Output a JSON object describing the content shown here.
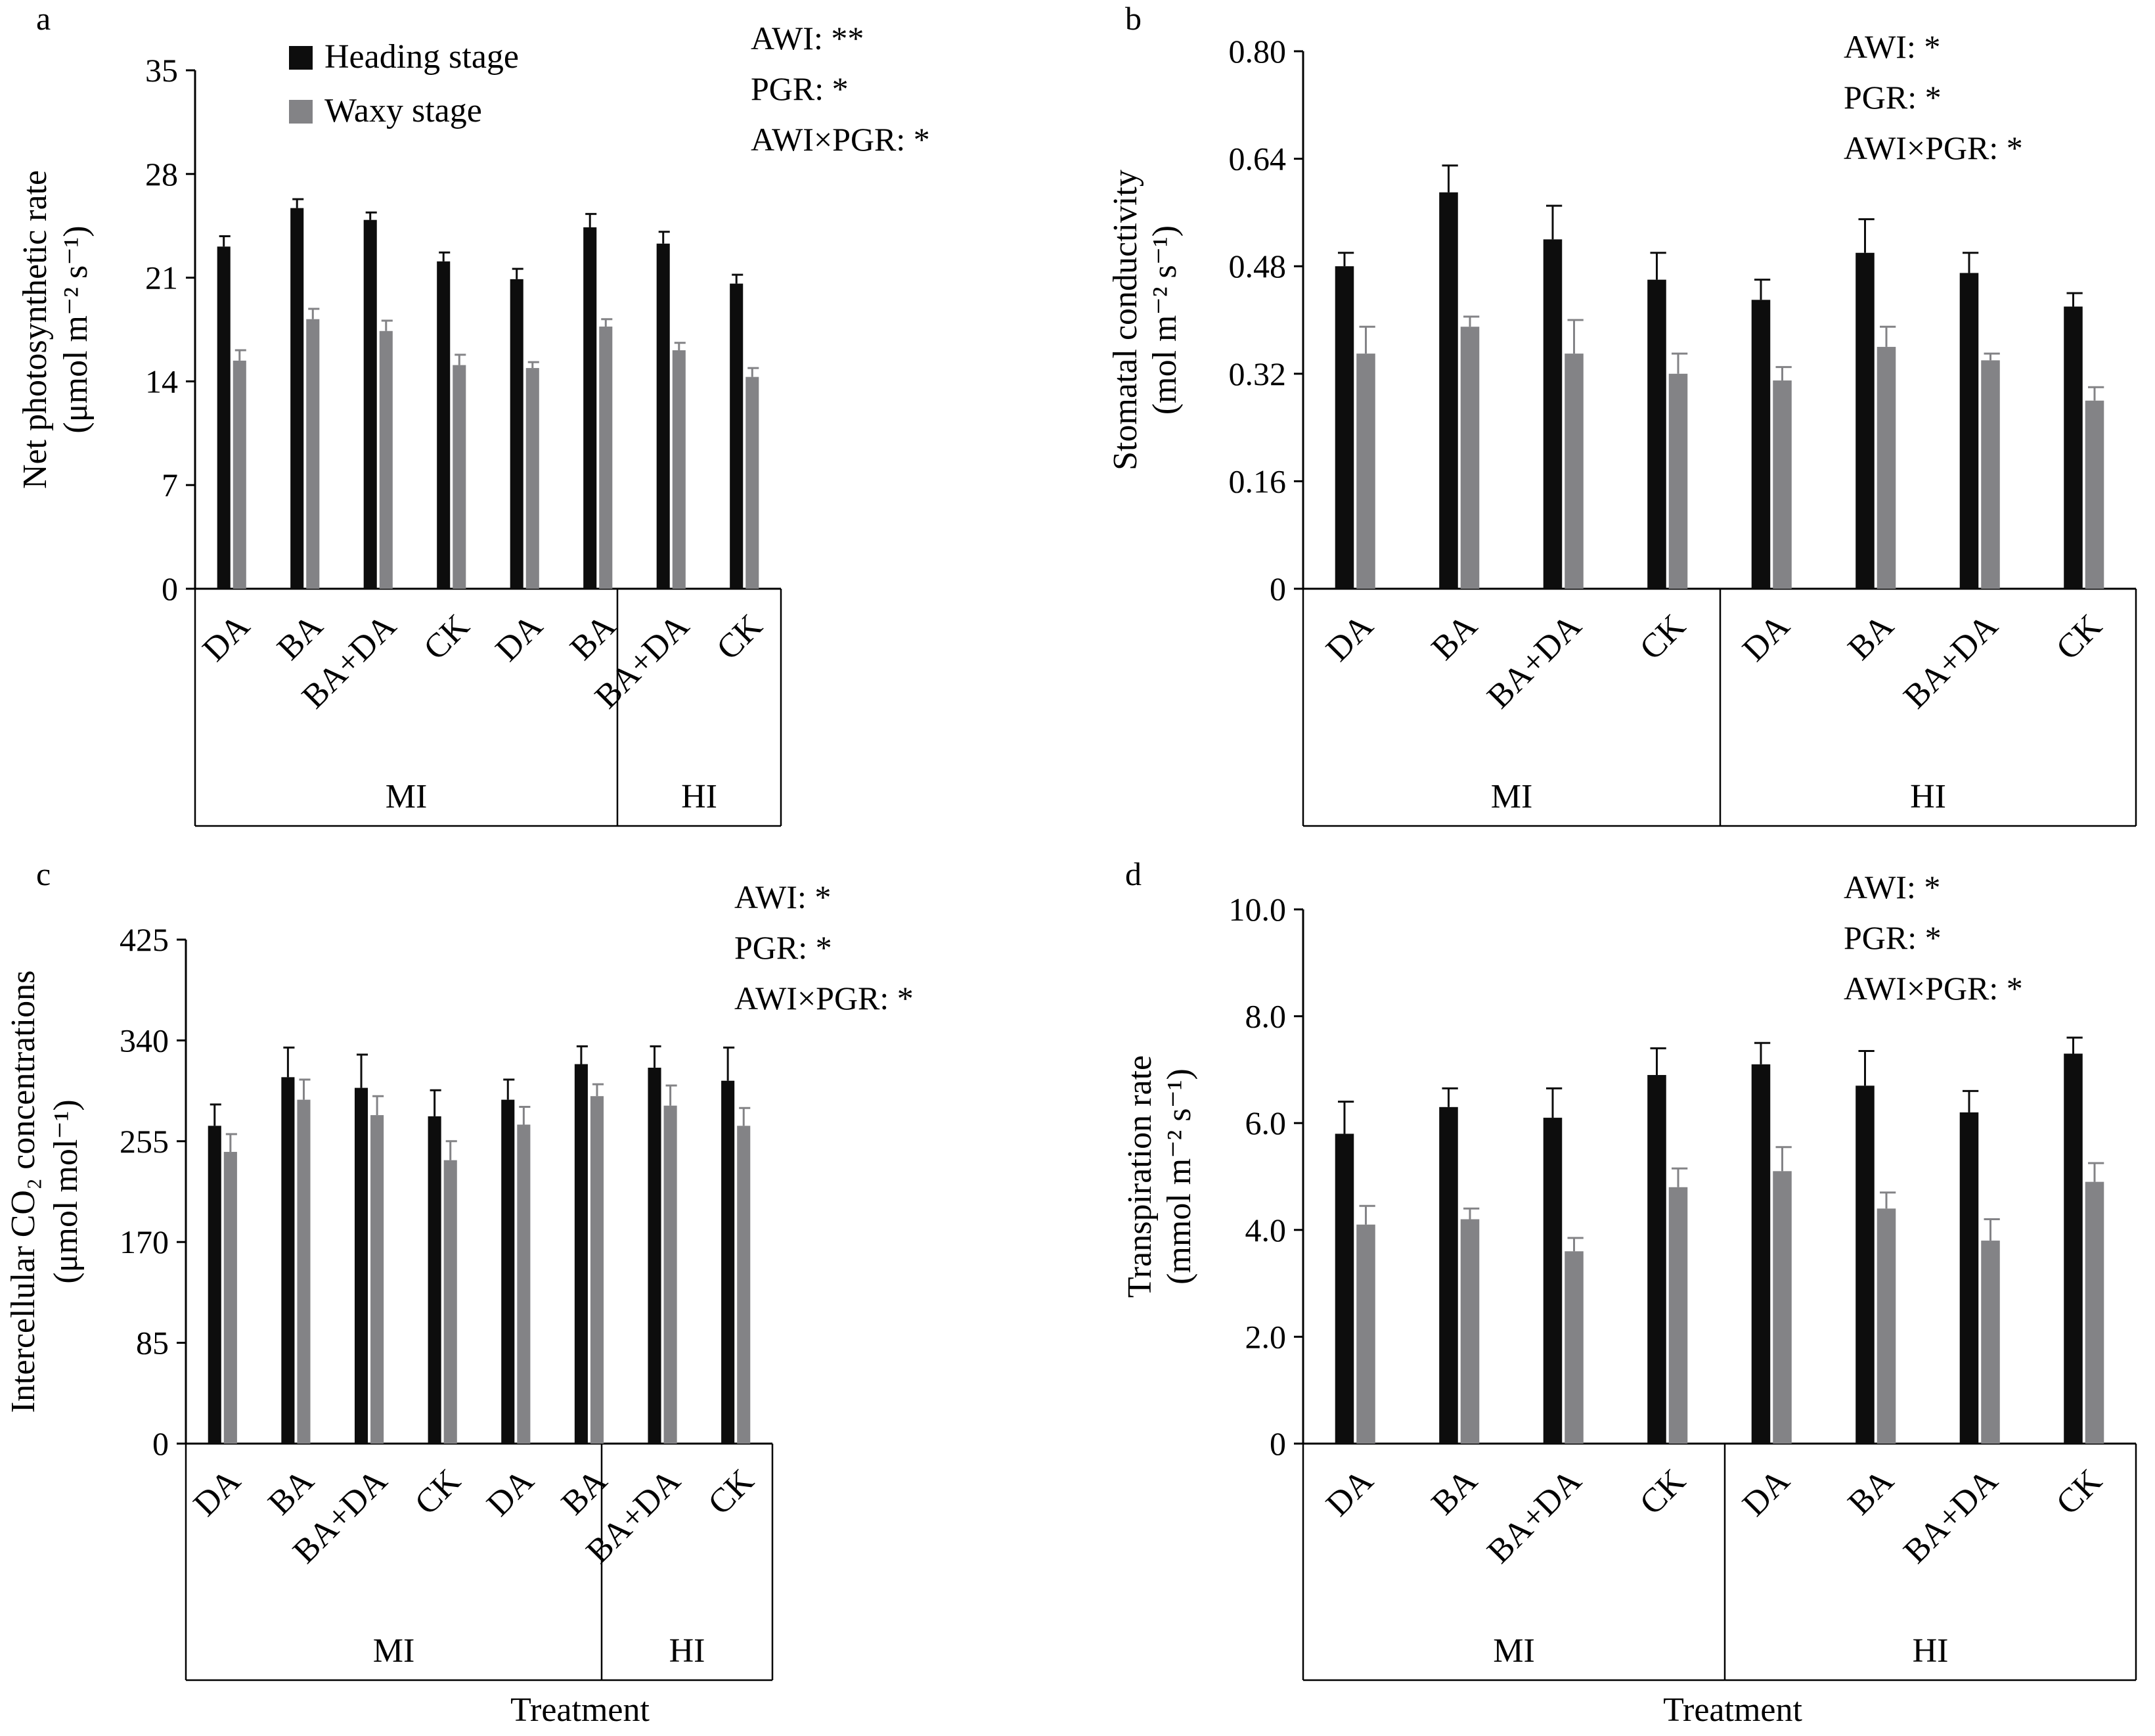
{
  "legend": {
    "series": [
      {
        "name": "Heading stage",
        "color": "#0d0d0d"
      },
      {
        "name": "Waxy stage",
        "color": "#838386"
      }
    ]
  },
  "x_title": "Treatment",
  "chart_data": [
    {
      "type": "bar",
      "panel": "a",
      "ylabel_line1": "Net photosynthetic rate",
      "ylabel_line2": "(μmol m⁻² s⁻¹)",
      "ylim": [
        0,
        35
      ],
      "yticks": [
        "0",
        "7",
        "14",
        "21",
        "28",
        "35"
      ],
      "categories": [
        "DA",
        "BA",
        "BA+DA",
        "CK",
        "DA",
        "BA",
        "BA+DA",
        "CK"
      ],
      "groups": [
        "MI",
        "HI"
      ],
      "series": [
        {
          "name": "Heading stage",
          "values": [
            23.1,
            25.7,
            24.9,
            22.1,
            20.9,
            24.4,
            23.3,
            20.6
          ],
          "errors": [
            0.7,
            0.6,
            0.5,
            0.6,
            0.7,
            0.9,
            0.8,
            0.6
          ]
        },
        {
          "name": "Waxy stage",
          "values": [
            15.4,
            18.2,
            17.4,
            15.1,
            14.9,
            17.7,
            16.1,
            14.3
          ],
          "errors": [
            0.7,
            0.7,
            0.7,
            0.7,
            0.4,
            0.5,
            0.5,
            0.6
          ]
        }
      ],
      "stats": [
        "AWI: **",
        "PGR: *",
        "AWI×PGR: *"
      ],
      "x_title": ""
    },
    {
      "type": "bar",
      "panel": "b",
      "ylabel_line1": "Stomatal conductivity",
      "ylabel_line2": "(mol m⁻² s⁻¹)",
      "ylim": [
        0,
        0.8
      ],
      "yticks": [
        "0",
        "0.16",
        "0.32",
        "0.48",
        "0.64",
        "0.80"
      ],
      "categories": [
        "DA",
        "BA",
        "BA+DA",
        "CK",
        "DA",
        "BA",
        "BA+DA",
        "CK"
      ],
      "groups": [
        "MI",
        "HI"
      ],
      "series": [
        {
          "name": "Heading stage",
          "values": [
            0.48,
            0.59,
            0.52,
            0.46,
            0.43,
            0.5,
            0.47,
            0.42
          ],
          "errors": [
            0.02,
            0.04,
            0.05,
            0.04,
            0.03,
            0.05,
            0.03,
            0.02
          ]
        },
        {
          "name": "Waxy stage",
          "values": [
            0.35,
            0.39,
            0.35,
            0.32,
            0.31,
            0.36,
            0.34,
            0.28
          ],
          "errors": [
            0.04,
            0.015,
            0.05,
            0.03,
            0.02,
            0.03,
            0.01,
            0.02
          ]
        }
      ],
      "stats": [
        "AWI: *",
        "PGR: *",
        "AWI×PGR: *"
      ],
      "x_title": ""
    },
    {
      "type": "bar",
      "panel": "c",
      "ylabel_line1": "Intercellular CO₂ concentrations",
      "ylabel_line2": "(μmol mol⁻¹)",
      "ylim": [
        0,
        425
      ],
      "yticks": [
        "0",
        "85",
        "170",
        "255",
        "340",
        "425"
      ],
      "categories": [
        "DA",
        "BA",
        "BA+DA",
        "CK",
        "DA",
        "BA",
        "BA+DA",
        "CK"
      ],
      "groups": [
        "MI",
        "HI"
      ],
      "series": [
        {
          "name": "Heading stage",
          "values": [
            268,
            309,
            300,
            276,
            290,
            320,
            317,
            306
          ],
          "errors": [
            18,
            25,
            28,
            22,
            17,
            15,
            18,
            28
          ]
        },
        {
          "name": "Waxy stage",
          "values": [
            246,
            290,
            277,
            239,
            269,
            293,
            285,
            268
          ],
          "errors": [
            15,
            17,
            16,
            16,
            15,
            10,
            17,
            15
          ]
        }
      ],
      "stats": [
        "AWI: *",
        "PGR: *",
        "AWI×PGR: *"
      ],
      "x_title": "Treatment"
    },
    {
      "type": "bar",
      "panel": "d",
      "ylabel_line1": "Transpiration rate",
      "ylabel_line2": "(mmol m⁻² s⁻¹)",
      "ylim": [
        0,
        10
      ],
      "yticks": [
        "0",
        "2.0",
        "4.0",
        "6.0",
        "8.0",
        "10.0"
      ],
      "categories": [
        "DA",
        "BA",
        "BA+DA",
        "CK",
        "DA",
        "BA",
        "BA+DA",
        "CK"
      ],
      "groups": [
        "MI",
        "HI"
      ],
      "series": [
        {
          "name": "Heading stage",
          "values": [
            5.8,
            6.3,
            6.1,
            6.9,
            7.1,
            6.7,
            6.2,
            7.3
          ],
          "errors": [
            0.6,
            0.35,
            0.55,
            0.5,
            0.4,
            0.65,
            0.4,
            0.3
          ]
        },
        {
          "name": "Waxy stage",
          "values": [
            4.1,
            4.2,
            3.6,
            4.8,
            5.1,
            4.4,
            3.8,
            4.9
          ],
          "errors": [
            0.35,
            0.2,
            0.25,
            0.35,
            0.45,
            0.3,
            0.4,
            0.35
          ]
        }
      ],
      "stats": [
        "AWI: *",
        "PGR: *",
        "AWI×PGR: *"
      ],
      "x_title": "Treatment"
    }
  ]
}
